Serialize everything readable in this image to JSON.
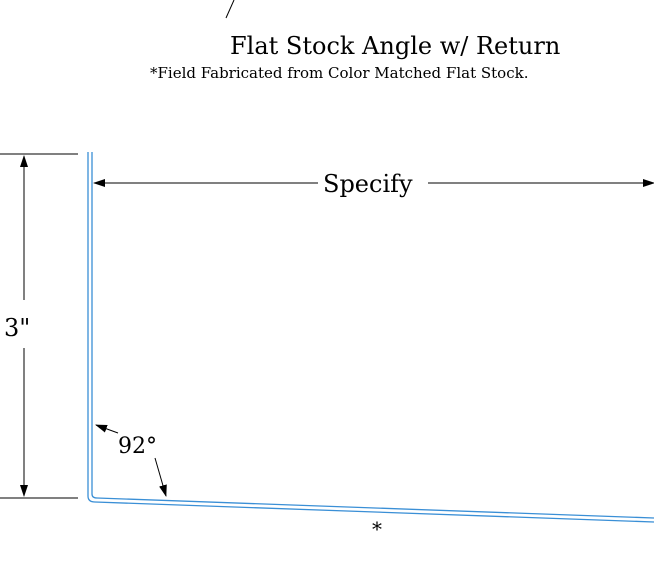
{
  "title": "Flat Stock Angle w/ Return",
  "subtitle": "*Field Fabricated from Color Matched Flat Stock.",
  "dimensions": {
    "width_label": "Specify",
    "height_label": "3\"",
    "angle_label": "92°",
    "bottom_note": "*"
  },
  "colors": {
    "profile": "#3a8fd6",
    "dimension_lines": "#000000"
  }
}
